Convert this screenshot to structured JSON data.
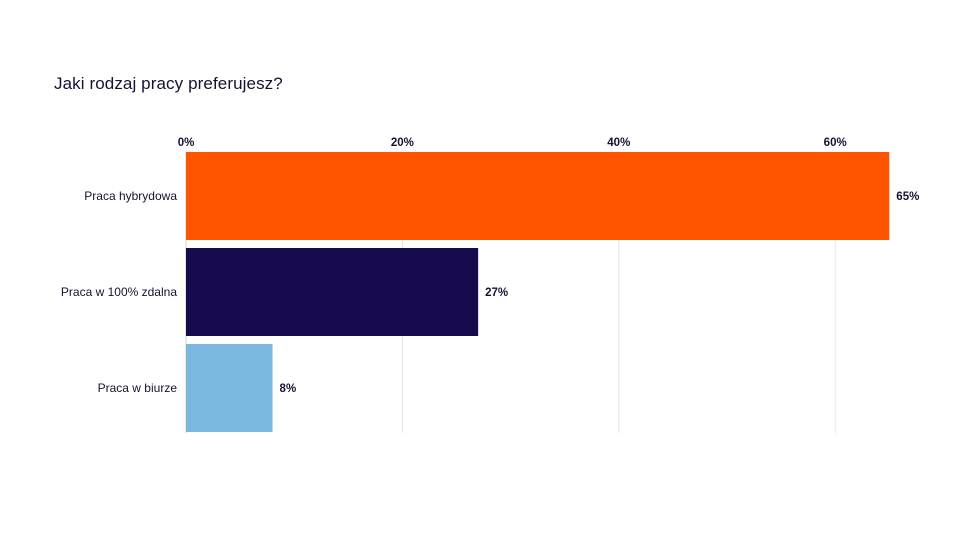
{
  "chart_data": {
    "type": "bar",
    "orientation": "horizontal",
    "title": "Jaki rodzaj pracy preferujesz?",
    "xlabel": "",
    "ylabel": "",
    "xlim": [
      0,
      65
    ],
    "x_ticks": [
      0,
      20,
      40,
      60
    ],
    "x_tick_labels": [
      "0%",
      "20%",
      "40%",
      "60%"
    ],
    "x_axis_position": "top",
    "grid": true,
    "legend": "none",
    "categories": [
      "Praca hybrydowa",
      "Praca w 100% zdalna",
      "Praca w biurze"
    ],
    "values": [
      65,
      27,
      8
    ],
    "data_labels": [
      "65%",
      "27%",
      "8%"
    ],
    "colors": [
      "#ff5500",
      "#170a4d",
      "#7ab8df"
    ]
  }
}
